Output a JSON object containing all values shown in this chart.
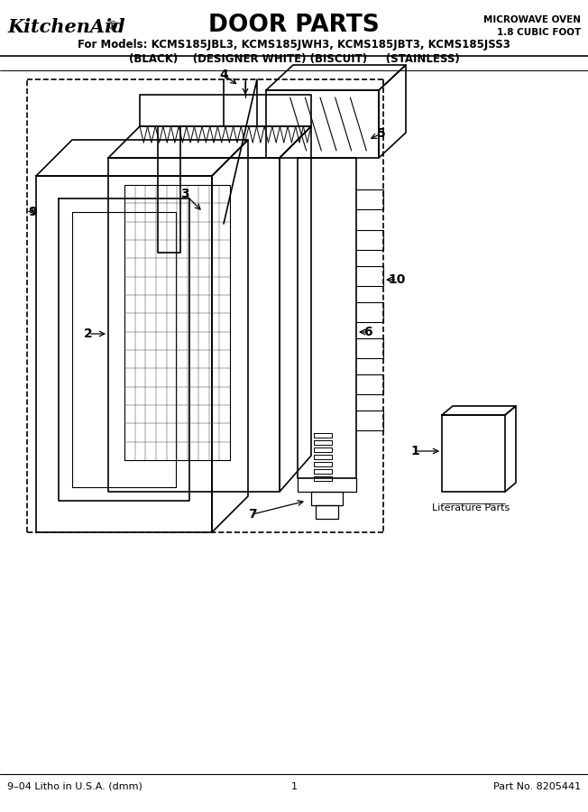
{
  "title": "DOOR PARTS",
  "brand": "KitchenAid®",
  "subtitle1": "For Models: KCMS185JBL3, KCMS185JWH3, KCMS185JBT3, KCMS185JSS3",
  "subtitle2": "(BLACK)    (DESIGNER WHITE) (BISCUIT)     (STAINLESS)",
  "top_right1": "MICROWAVE OVEN",
  "top_right2": "1.8 CUBIC FOOT",
  "footer_left": "9–04 Litho in U.S.A. (dmm)",
  "footer_center": "1",
  "footer_right": "Part No. 8205441",
  "literature_parts": "Literature Parts",
  "bg_color": "#ffffff",
  "line_color": "#000000"
}
